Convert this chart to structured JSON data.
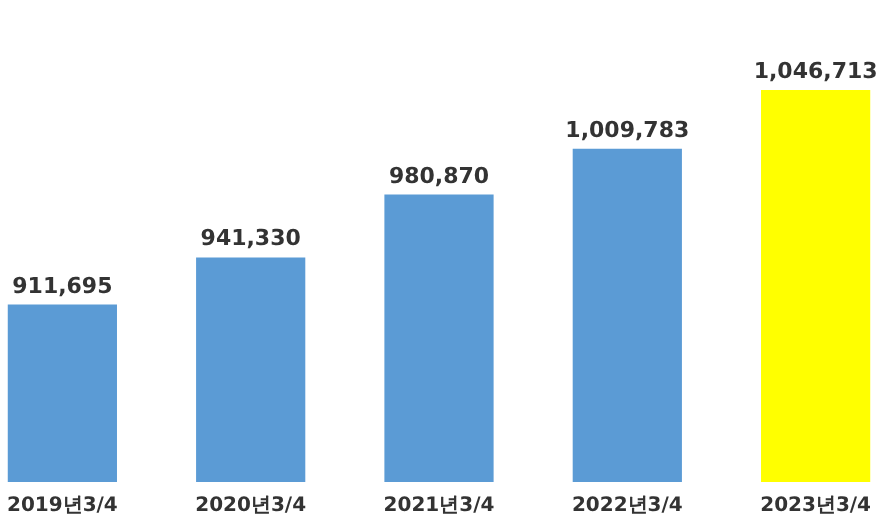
{
  "chart_data": {
    "type": "bar",
    "categories": [
      "2019년3/4",
      "2020년3/4",
      "2021년3/4",
      "2022년3/4",
      "2023년3/4"
    ],
    "values": [
      911695,
      941330,
      980870,
      1009783,
      1046713
    ],
    "colors": [
      "#5b9bd5",
      "#5b9bd5",
      "#5b9bd5",
      "#5b9bd5",
      "#ffff00"
    ],
    "ylim": [
      800000,
      1046713
    ],
    "value_labels": [
      "911,695",
      "941,330",
      "980,870",
      "1,009,783",
      "1,046,713"
    ],
    "tick_labels": "x"
  }
}
